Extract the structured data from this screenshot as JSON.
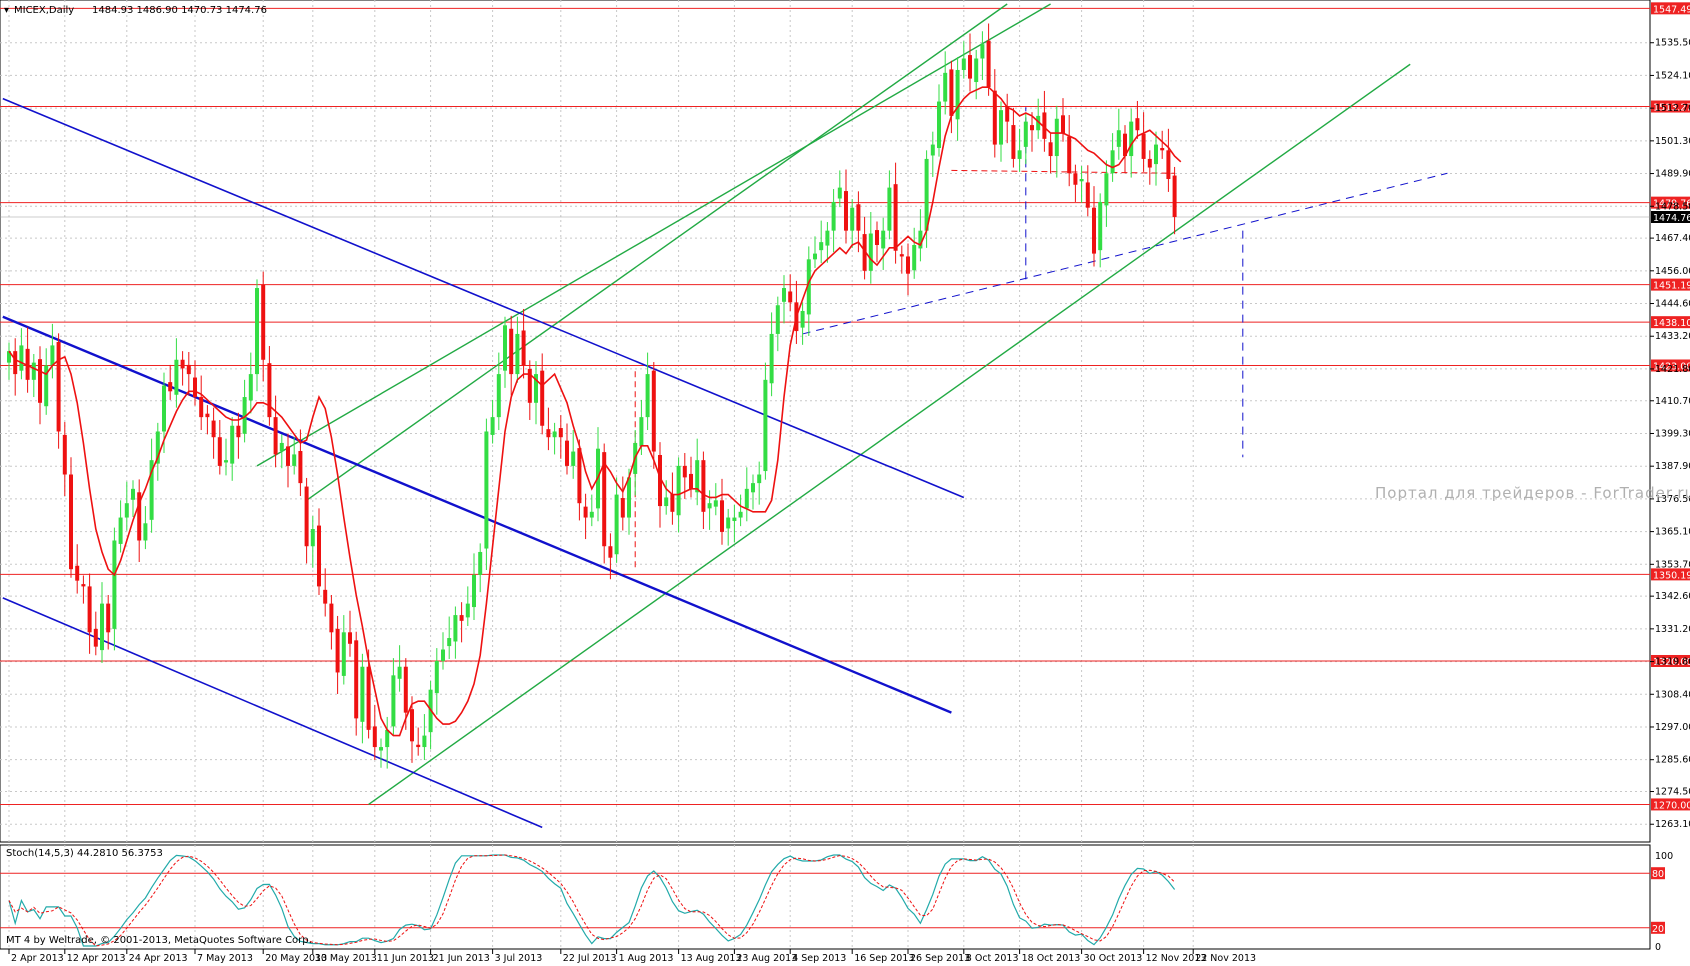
{
  "header": {
    "symbol": "MICEX,Daily",
    "ohlc": "1484.93 1486.90 1470.73 1474.76"
  },
  "stoch_header": "Stoch(14,5,3) 44.2810 56.3753",
  "footer": "MT 4 by Weltrade, © 2001-2013, MetaQuotes Software Corp.",
  "watermark": "Портал для трейдеров - ForTrader.ru",
  "colors": {
    "bull": "#33dd44",
    "bear": "#ee1111",
    "level": "#ee2222",
    "channel_green": "#22aa44",
    "channel_blue": "#1111cc",
    "ma": "#ee1111",
    "stoch_main": "#22aaaa",
    "stoch_signal": "#ee1111"
  },
  "chart_data": {
    "type": "candlestick",
    "price_axis": {
      "ticks": [
        "1535.50",
        "1524.10",
        "1512.70",
        "1501.30",
        "1489.90",
        "1478.50",
        "1467.40",
        "1456.00",
        "1444.60",
        "1433.20",
        "1421.80",
        "1410.70",
        "1399.30",
        "1387.90",
        "1376.50",
        "1365.10",
        "1353.70",
        "1342.60",
        "1331.20",
        "1319.80",
        "1308.40",
        "1297.00",
        "1285.60",
        "1274.50",
        "1263.10"
      ],
      "min": 1259.0,
      "max": 1549.0
    },
    "level_lines": [
      {
        "value": 1547.49,
        "label": "1547.49"
      },
      {
        "value": 1513.27,
        "label": "1513.27"
      },
      {
        "value": 1479.76,
        "label": "1479.76"
      },
      {
        "value": 1451.19,
        "label": "1451.19"
      },
      {
        "value": 1438.1,
        "label": "1438.10"
      },
      {
        "value": 1423.0,
        "label": "1423.00"
      },
      {
        "value": 1350.19,
        "label": "1350.19"
      },
      {
        "value": 1320.0,
        "label": "1320.00"
      },
      {
        "value": 1270.0,
        "label": "1270.00"
      }
    ],
    "current_price": {
      "value": 1474.76,
      "label": "1474.76"
    },
    "date_labels": [
      "2 Apr 2013",
      "12 Apr 2013",
      "24 Apr 2013",
      "7 May 2013",
      "20 May 2013",
      "30 May 2013",
      "11 Jun 2013",
      "21 Jun 2013",
      "3 Jul 2013",
      "22 Jul 2013",
      "1 Aug 2013",
      "13 Aug 2013",
      "23 Aug 2013",
      "4 Sep 2013",
      "16 Sep 2013",
      "26 Sep 2013",
      "8 Oct 2013",
      "18 Oct 2013",
      "30 Oct 2013",
      "12 Nov 2013",
      "22 Nov 2013"
    ],
    "date_label_bars": [
      0,
      9,
      19,
      30,
      41,
      49,
      59,
      68,
      78,
      89,
      98,
      108,
      117,
      126,
      136,
      145,
      154,
      163,
      173,
      183,
      191
    ],
    "bar_spacing": 6.2,
    "closes": [
      1428,
      1420,
      1430,
      1418,
      1424,
      1410,
      1423,
      1430,
      1400,
      1385,
      1352,
      1348,
      1346,
      1330,
      1325,
      1340,
      1330,
      1362,
      1370,
      1375,
      1380,
      1362,
      1368,
      1390,
      1400,
      1416,
      1414,
      1425,
      1422,
      1420,
      1412,
      1405,
      1405,
      1398,
      1388,
      1390,
      1402,
      1398,
      1412,
      1420,
      1450,
      1425,
      1405,
      1392,
      1396,
      1388,
      1392,
      1382,
      1360,
      1366,
      1346,
      1340,
      1330,
      1316,
      1330,
      1326,
      1300,
      1318,
      1296,
      1290,
      1290,
      1296,
      1315,
      1318,
      1302,
      1292,
      1290,
      1294,
      1310,
      1320,
      1324,
      1328,
      1336,
      1334,
      1340,
      1350,
      1358,
      1400,
      1405,
      1420,
      1437,
      1420,
      1434,
      1423,
      1410,
      1420,
      1402,
      1398,
      1400,
      1398,
      1388,
      1393,
      1375,
      1370,
      1372,
      1394,
      1360,
      1356,
      1378,
      1370,
      1384,
      1396,
      1405,
      1420,
      1393,
      1374,
      1377,
      1372,
      1388,
      1384,
      1380,
      1390,
      1372,
      1375,
      1376,
      1365,
      1370,
      1370,
      1372,
      1380,
      1382,
      1385,
      1418,
      1434,
      1444,
      1450,
      1445,
      1435,
      1442,
      1460,
      1462,
      1466,
      1470,
      1480,
      1485,
      1470,
      1478,
      1470,
      1456,
      1469,
      1465,
      1470,
      1485,
      1463,
      1461,
      1455,
      1465,
      1470,
      1495,
      1500,
      1515,
      1525,
      1510,
      1526,
      1530,
      1523,
      1530,
      1535,
      1520,
      1500,
      1512,
      1508,
      1495,
      1498,
      1508,
      1505,
      1510,
      1502,
      1496,
      1509,
      1504,
      1490,
      1486,
      1488,
      1478,
      1462,
      1480,
      1490,
      1498,
      1505,
      1496,
      1508,
      1505,
      1495,
      1492,
      1500,
      1498,
      1488,
      1474.76
    ],
    "ma_values": [
      1428,
      1425,
      1424,
      1423,
      1422,
      1421,
      1420,
      1423,
      1425,
      1426,
      1420,
      1410,
      1396,
      1380,
      1366,
      1358,
      1352,
      1350,
      1355,
      1362,
      1369,
      1375,
      1380,
      1386,
      1391,
      1397,
      1402,
      1407,
      1411,
      1414,
      1414,
      1413,
      1411,
      1409,
      1407,
      1405,
      1404,
      1404,
      1405,
      1407,
      1410,
      1410,
      1409,
      1407,
      1405,
      1402,
      1399,
      1396,
      1397,
      1405,
      1412,
      1408,
      1398,
      1385,
      1370,
      1356,
      1343,
      1332,
      1320,
      1310,
      1300,
      1296,
      1294,
      1294,
      1300,
      1305,
      1306,
      1306,
      1303,
      1300,
      1298,
      1298,
      1299,
      1302,
      1306,
      1312,
      1322,
      1340,
      1360,
      1380,
      1400,
      1412,
      1418,
      1420,
      1420,
      1418,
      1416,
      1418,
      1420,
      1415,
      1410,
      1402,
      1395,
      1386,
      1380,
      1384,
      1389,
      1386,
      1382,
      1379,
      1384,
      1391,
      1395,
      1395,
      1390,
      1384,
      1380,
      1378,
      1378,
      1379,
      1380,
      1380,
      1378,
      1377,
      1377,
      1378,
      1378,
      1376,
      1374,
      1373,
      1372,
      1372,
      1372,
      1376,
      1390,
      1412,
      1430,
      1440,
      1446,
      1452,
      1456,
      1458,
      1460,
      1462,
      1464,
      1462,
      1465,
      1466,
      1463,
      1460,
      1458,
      1461,
      1464,
      1464,
      1466,
      1468,
      1466,
      1465,
      1470,
      1480,
      1492,
      1503,
      1510,
      1513,
      1516,
      1518,
      1519,
      1520,
      1520,
      1518,
      1516,
      1513,
      1512,
      1510,
      1511,
      1510,
      1508,
      1506,
      1504,
      1504,
      1504,
      1503,
      1502,
      1500,
      1498,
      1497,
      1495,
      1493,
      1492,
      1493,
      1496,
      1500,
      1503,
      1504,
      1505,
      1503,
      1501,
      1499,
      1496,
      1494
    ],
    "stoch": {
      "levels": [
        80,
        20
      ],
      "range": [
        0,
        100
      ],
      "axis_labels": [
        "100",
        "80",
        "20",
        "0"
      ]
    }
  }
}
